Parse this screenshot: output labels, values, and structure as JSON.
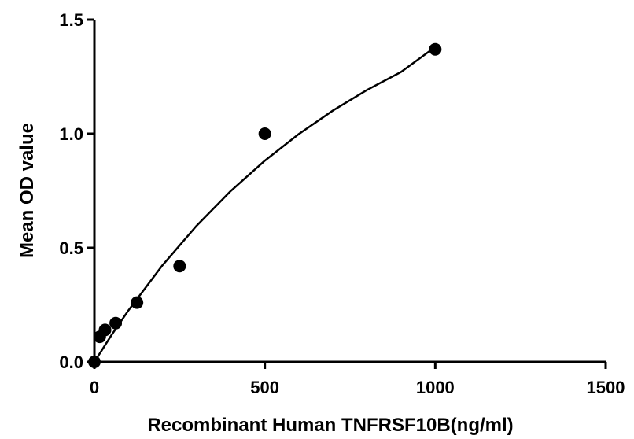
{
  "chart_data": {
    "type": "scatter",
    "xlabel": "Recombinant Human TNFRSF10B(ng/ml)",
    "ylabel": "Mean OD value",
    "xlim": [
      0,
      1500
    ],
    "ylim": [
      0,
      1.5
    ],
    "x_ticks": [
      0,
      500,
      1000,
      1500
    ],
    "y_ticks": [
      0.0,
      0.5,
      1.0,
      1.5
    ],
    "x_tick_labels": [
      "0",
      "500",
      "1000",
      "1500"
    ],
    "y_tick_labels": [
      "0.0",
      "0.5",
      "1.0",
      "1.5"
    ],
    "grid": false,
    "series": [
      {
        "points": [
          {
            "x": 0,
            "y": 0.0
          },
          {
            "x": 15.6,
            "y": 0.11
          },
          {
            "x": 31.25,
            "y": 0.14
          },
          {
            "x": 62.5,
            "y": 0.17
          },
          {
            "x": 125,
            "y": 0.26
          },
          {
            "x": 250,
            "y": 0.42
          },
          {
            "x": 500,
            "y": 1.0
          },
          {
            "x": 1000,
            "y": 1.37
          }
        ]
      }
    ],
    "fit_curve": {
      "type": "saturation",
      "samples": [
        {
          "x": 0,
          "y": 0.0
        },
        {
          "x": 50,
          "y": 0.117
        },
        {
          "x": 100,
          "y": 0.226
        },
        {
          "x": 200,
          "y": 0.424
        },
        {
          "x": 300,
          "y": 0.597
        },
        {
          "x": 400,
          "y": 0.749
        },
        {
          "x": 500,
          "y": 0.882
        },
        {
          "x": 600,
          "y": 0.999
        },
        {
          "x": 700,
          "y": 1.102
        },
        {
          "x": 800,
          "y": 1.192
        },
        {
          "x": 900,
          "y": 1.271
        },
        {
          "x": 1000,
          "y": 1.38
        }
      ]
    },
    "colors": {
      "axis": "#000000",
      "marker": "#000000",
      "curve": "#000000"
    }
  }
}
